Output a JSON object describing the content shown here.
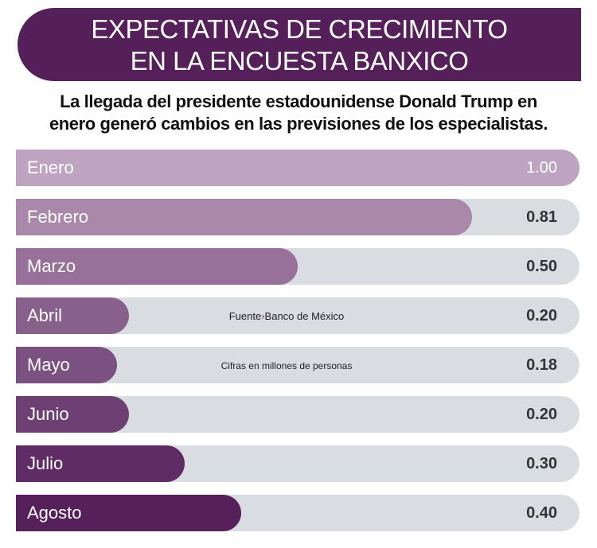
{
  "header": {
    "title_line1": "EXPECTATIVAS DE CRECIMIENTO",
    "title_line2": "EN LA ENCUESTA BANXICO"
  },
  "subtitle": {
    "line1": "La llegada del presidente estadounidense Donald Trump en",
    "line2": "enero generó cambios en las previsiones de los especialistas."
  },
  "notes": {
    "source_label": "Fuente",
    "source_arrow": "›",
    "source": "Banco de México",
    "units": "Cifras en millones de personas"
  },
  "chart_data": {
    "type": "bar",
    "orientation": "horizontal",
    "categories": [
      "Enero",
      "Febrero",
      "Marzo",
      "Abril",
      "Mayo",
      "Junio",
      "Julio",
      "Agosto"
    ],
    "values": [
      1.0,
      0.81,
      0.5,
      0.2,
      0.18,
      0.2,
      0.3,
      0.4
    ],
    "value_labels": [
      "1.00",
      "0.81",
      "0.50",
      "0.20",
      "0.18",
      "0.20",
      "0.30",
      "0.40"
    ],
    "xlim": [
      0,
      1
    ],
    "colors": [
      "#bea4c1",
      "#a988a9",
      "#977199",
      "#87618c",
      "#7a5180",
      "#6d3f72",
      "#5f2c66",
      "#56215b"
    ],
    "track_color": "#d9dde1"
  }
}
